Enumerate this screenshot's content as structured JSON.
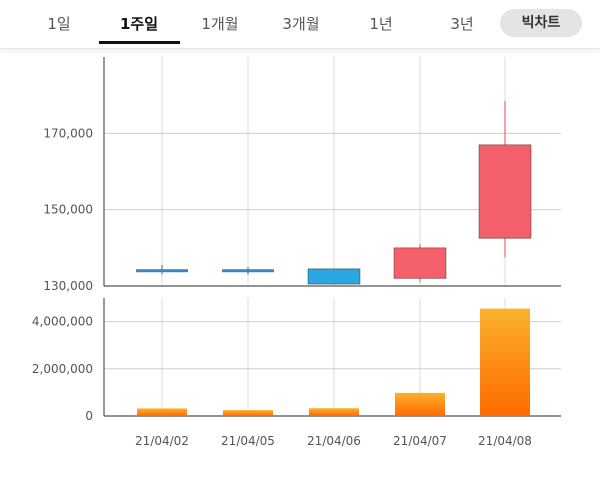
{
  "tabs": [
    {
      "label": "1일",
      "active": false
    },
    {
      "label": "1주일",
      "active": true
    },
    {
      "label": "1개월",
      "active": false
    },
    {
      "label": "3개월",
      "active": false
    },
    {
      "label": "1년",
      "active": false
    },
    {
      "label": "3년",
      "active": false
    }
  ],
  "chart_button": "빅차트",
  "colors": {
    "up": "#f4606a",
    "down": "#2aa7e0",
    "flat": "#3a86c4",
    "volume_top": "#fbb12e",
    "volume_bottom": "#ff6a00"
  },
  "chart_data": [
    {
      "type": "candlestick",
      "categories": [
        "21/04/02",
        "21/04/05",
        "21/04/06",
        "21/04/07",
        "21/04/08"
      ],
      "series": [
        {
          "name": "price",
          "ohlc": [
            {
              "open": 134000,
              "high": 135500,
              "low": 133000,
              "close": 134000
            },
            {
              "open": 134000,
              "high": 135000,
              "low": 133000,
              "close": 134000
            },
            {
              "open": 134500,
              "high": 134500,
              "low": 130500,
              "close": 130500
            },
            {
              "open": 132000,
              "high": 141000,
              "low": 131000,
              "close": 140000
            },
            {
              "open": 142500,
              "high": 178500,
              "low": 137500,
              "close": 167000
            }
          ]
        }
      ],
      "yticks": [
        "170,000",
        "150,000",
        "130,000"
      ],
      "ytick_values": [
        170000,
        150000,
        130000
      ],
      "ylim": [
        130000,
        190000
      ],
      "grid": true
    },
    {
      "type": "bar",
      "categories": [
        "21/04/02",
        "21/04/05",
        "21/04/06",
        "21/04/07",
        "21/04/08"
      ],
      "series": [
        {
          "name": "volume",
          "values": [
            320000,
            250000,
            330000,
            980000,
            4550000
          ]
        }
      ],
      "yticks": [
        "4,000,000",
        "2,000,000",
        "0"
      ],
      "ytick_values": [
        4000000,
        2000000,
        0
      ],
      "ylim": [
        0,
        5000000
      ],
      "grid": true
    }
  ]
}
